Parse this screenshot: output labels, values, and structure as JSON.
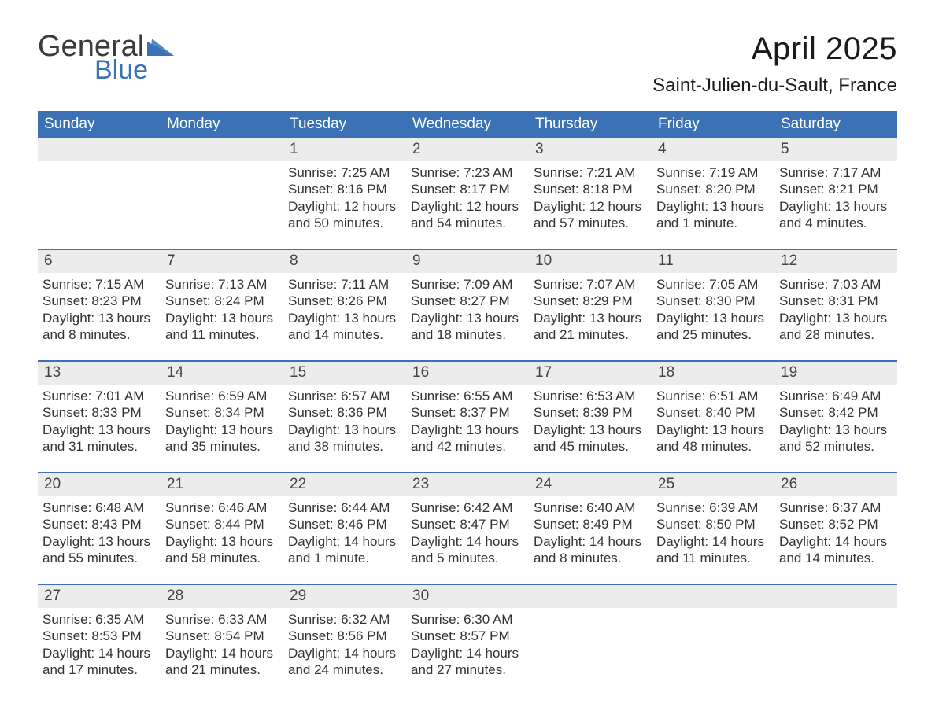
{
  "logo": {
    "word1": "General",
    "word2": "Blue",
    "word1_color": "#3b3b3b",
    "word2_color": "#3a72b5",
    "triangle_color": "#3a72b5"
  },
  "title": "April 2025",
  "subtitle": "Saint-Julien-du-Sault, France",
  "colors": {
    "header_bg": "#3a72b5",
    "header_text": "#ffffff",
    "daynum_bg": "#ececec",
    "text": "#333333",
    "rule": "#3a72b5",
    "page_bg": "#ffffff"
  },
  "typography": {
    "title_fontsize": 40,
    "subtitle_fontsize": 24,
    "dow_fontsize": 19,
    "body_fontsize": 17,
    "font_family": "Arial"
  },
  "labels": {
    "sunrise": "Sunrise:",
    "sunset": "Sunset:",
    "daylight": "Daylight:"
  },
  "calendar": {
    "type": "table",
    "month": "April",
    "year": 2025,
    "days_of_week": [
      "Sunday",
      "Monday",
      "Tuesday",
      "Wednesday",
      "Thursday",
      "Friday",
      "Saturday"
    ],
    "weeks": [
      [
        {
          "day": "",
          "sunrise": "",
          "sunset": "",
          "daylight1": "",
          "daylight2": ""
        },
        {
          "day": "",
          "sunrise": "",
          "sunset": "",
          "daylight1": "",
          "daylight2": ""
        },
        {
          "day": "1",
          "sunrise": "7:25 AM",
          "sunset": "8:16 PM",
          "daylight1": "12 hours",
          "daylight2": "and 50 minutes."
        },
        {
          "day": "2",
          "sunrise": "7:23 AM",
          "sunset": "8:17 PM",
          "daylight1": "12 hours",
          "daylight2": "and 54 minutes."
        },
        {
          "day": "3",
          "sunrise": "7:21 AM",
          "sunset": "8:18 PM",
          "daylight1": "12 hours",
          "daylight2": "and 57 minutes."
        },
        {
          "day": "4",
          "sunrise": "7:19 AM",
          "sunset": "8:20 PM",
          "daylight1": "13 hours",
          "daylight2": "and 1 minute."
        },
        {
          "day": "5",
          "sunrise": "7:17 AM",
          "sunset": "8:21 PM",
          "daylight1": "13 hours",
          "daylight2": "and 4 minutes."
        }
      ],
      [
        {
          "day": "6",
          "sunrise": "7:15 AM",
          "sunset": "8:23 PM",
          "daylight1": "13 hours",
          "daylight2": "and 8 minutes."
        },
        {
          "day": "7",
          "sunrise": "7:13 AM",
          "sunset": "8:24 PM",
          "daylight1": "13 hours",
          "daylight2": "and 11 minutes."
        },
        {
          "day": "8",
          "sunrise": "7:11 AM",
          "sunset": "8:26 PM",
          "daylight1": "13 hours",
          "daylight2": "and 14 minutes."
        },
        {
          "day": "9",
          "sunrise": "7:09 AM",
          "sunset": "8:27 PM",
          "daylight1": "13 hours",
          "daylight2": "and 18 minutes."
        },
        {
          "day": "10",
          "sunrise": "7:07 AM",
          "sunset": "8:29 PM",
          "daylight1": "13 hours",
          "daylight2": "and 21 minutes."
        },
        {
          "day": "11",
          "sunrise": "7:05 AM",
          "sunset": "8:30 PM",
          "daylight1": "13 hours",
          "daylight2": "and 25 minutes."
        },
        {
          "day": "12",
          "sunrise": "7:03 AM",
          "sunset": "8:31 PM",
          "daylight1": "13 hours",
          "daylight2": "and 28 minutes."
        }
      ],
      [
        {
          "day": "13",
          "sunrise": "7:01 AM",
          "sunset": "8:33 PM",
          "daylight1": "13 hours",
          "daylight2": "and 31 minutes."
        },
        {
          "day": "14",
          "sunrise": "6:59 AM",
          "sunset": "8:34 PM",
          "daylight1": "13 hours",
          "daylight2": "and 35 minutes."
        },
        {
          "day": "15",
          "sunrise": "6:57 AM",
          "sunset": "8:36 PM",
          "daylight1": "13 hours",
          "daylight2": "and 38 minutes."
        },
        {
          "day": "16",
          "sunrise": "6:55 AM",
          "sunset": "8:37 PM",
          "daylight1": "13 hours",
          "daylight2": "and 42 minutes."
        },
        {
          "day": "17",
          "sunrise": "6:53 AM",
          "sunset": "8:39 PM",
          "daylight1": "13 hours",
          "daylight2": "and 45 minutes."
        },
        {
          "day": "18",
          "sunrise": "6:51 AM",
          "sunset": "8:40 PM",
          "daylight1": "13 hours",
          "daylight2": "and 48 minutes."
        },
        {
          "day": "19",
          "sunrise": "6:49 AM",
          "sunset": "8:42 PM",
          "daylight1": "13 hours",
          "daylight2": "and 52 minutes."
        }
      ],
      [
        {
          "day": "20",
          "sunrise": "6:48 AM",
          "sunset": "8:43 PM",
          "daylight1": "13 hours",
          "daylight2": "and 55 minutes."
        },
        {
          "day": "21",
          "sunrise": "6:46 AM",
          "sunset": "8:44 PM",
          "daylight1": "13 hours",
          "daylight2": "and 58 minutes."
        },
        {
          "day": "22",
          "sunrise": "6:44 AM",
          "sunset": "8:46 PM",
          "daylight1": "14 hours",
          "daylight2": "and 1 minute."
        },
        {
          "day": "23",
          "sunrise": "6:42 AM",
          "sunset": "8:47 PM",
          "daylight1": "14 hours",
          "daylight2": "and 5 minutes."
        },
        {
          "day": "24",
          "sunrise": "6:40 AM",
          "sunset": "8:49 PM",
          "daylight1": "14 hours",
          "daylight2": "and 8 minutes."
        },
        {
          "day": "25",
          "sunrise": "6:39 AM",
          "sunset": "8:50 PM",
          "daylight1": "14 hours",
          "daylight2": "and 11 minutes."
        },
        {
          "day": "26",
          "sunrise": "6:37 AM",
          "sunset": "8:52 PM",
          "daylight1": "14 hours",
          "daylight2": "and 14 minutes."
        }
      ],
      [
        {
          "day": "27",
          "sunrise": "6:35 AM",
          "sunset": "8:53 PM",
          "daylight1": "14 hours",
          "daylight2": "and 17 minutes."
        },
        {
          "day": "28",
          "sunrise": "6:33 AM",
          "sunset": "8:54 PM",
          "daylight1": "14 hours",
          "daylight2": "and 21 minutes."
        },
        {
          "day": "29",
          "sunrise": "6:32 AM",
          "sunset": "8:56 PM",
          "daylight1": "14 hours",
          "daylight2": "and 24 minutes."
        },
        {
          "day": "30",
          "sunrise": "6:30 AM",
          "sunset": "8:57 PM",
          "daylight1": "14 hours",
          "daylight2": "and 27 minutes."
        },
        {
          "day": "",
          "sunrise": "",
          "sunset": "",
          "daylight1": "",
          "daylight2": ""
        },
        {
          "day": "",
          "sunrise": "",
          "sunset": "",
          "daylight1": "",
          "daylight2": ""
        },
        {
          "day": "",
          "sunrise": "",
          "sunset": "",
          "daylight1": "",
          "daylight2": ""
        }
      ]
    ]
  }
}
